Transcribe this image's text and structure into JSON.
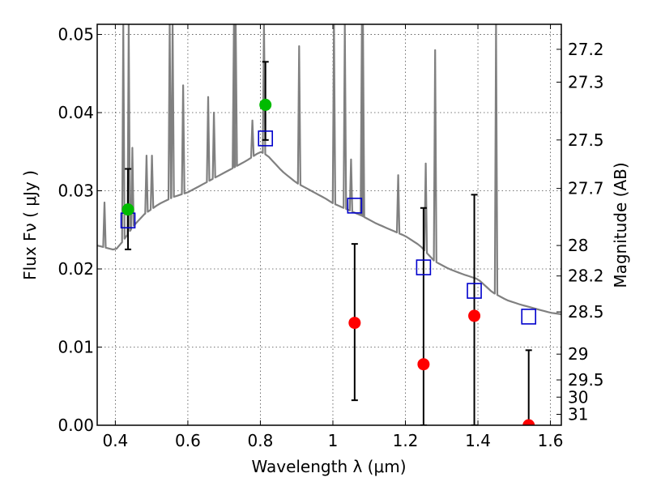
{
  "chart_data": {
    "type": "scatter",
    "xlabel": "Wavelength  λ (μm)",
    "ylabel": "Flux  Fν  ( μJy )",
    "y2label": "Magnitude (AB)",
    "xlim": [
      0.35,
      1.63
    ],
    "ylim": [
      0.0,
      0.0513
    ],
    "x_ticks": [
      0.4,
      0.6,
      0.8,
      1.0,
      1.2,
      1.4,
      1.6
    ],
    "x_tick_labels": [
      "0.4",
      "0.6",
      "0.8",
      "1",
      "1.2",
      "1.4",
      "1.6"
    ],
    "y_ticks": [
      0.0,
      0.01,
      0.02,
      0.03,
      0.04,
      0.05
    ],
    "y_tick_labels": [
      "0.00",
      "0.01",
      "0.02",
      "0.03",
      "0.04",
      "0.05"
    ],
    "mag_ticks": [
      {
        "label": "27.2",
        "flux": 0.0481
      },
      {
        "label": "27.3",
        "flux": 0.0439
      },
      {
        "label": "27.5",
        "flux": 0.0365
      },
      {
        "label": "27.7",
        "flux": 0.0303
      },
      {
        "label": "28",
        "flux": 0.023
      },
      {
        "label": "28.2",
        "flux": 0.0191
      },
      {
        "label": "28.5",
        "flux": 0.0145
      },
      {
        "label": "29",
        "flux": 0.0091
      },
      {
        "label": "29.5",
        "flux": 0.0058
      },
      {
        "label": "30",
        "flux": 0.0036
      },
      {
        "label": "31",
        "flux": 0.0014
      }
    ],
    "grid": true,
    "colors": {
      "model": "#808080",
      "detection": "#00bb00",
      "upper_limit": "#ff0000",
      "synthetic": "#0000cc",
      "errorbar": "#000000"
    },
    "model_continuum": [
      [
        0.35,
        0.023
      ],
      [
        0.4,
        0.0224
      ],
      [
        0.42,
        0.0235
      ],
      [
        0.45,
        0.0255
      ],
      [
        0.48,
        0.027
      ],
      [
        0.52,
        0.0283
      ],
      [
        0.56,
        0.0292
      ],
      [
        0.6,
        0.0298
      ],
      [
        0.64,
        0.0308
      ],
      [
        0.68,
        0.0318
      ],
      [
        0.72,
        0.0328
      ],
      [
        0.76,
        0.0338
      ],
      [
        0.8,
        0.035
      ],
      [
        0.82,
        0.0345
      ],
      [
        0.86,
        0.0325
      ],
      [
        0.9,
        0.031
      ],
      [
        0.94,
        0.03
      ],
      [
        0.98,
        0.029
      ],
      [
        1.0,
        0.0284
      ],
      [
        1.04,
        0.0276
      ],
      [
        1.08,
        0.0268
      ],
      [
        1.12,
        0.0258
      ],
      [
        1.16,
        0.025
      ],
      [
        1.2,
        0.0242
      ],
      [
        1.24,
        0.023
      ],
      [
        1.28,
        0.021
      ],
      [
        1.32,
        0.02
      ],
      [
        1.36,
        0.0193
      ],
      [
        1.4,
        0.0187
      ],
      [
        1.44,
        0.017
      ],
      [
        1.48,
        0.016
      ],
      [
        1.52,
        0.0154
      ],
      [
        1.56,
        0.0149
      ],
      [
        1.6,
        0.0144
      ],
      [
        1.63,
        0.0142
      ]
    ],
    "emission_lines": [
      {
        "x": 0.37,
        "peak": 0.0285
      },
      {
        "x": 0.422,
        "peak": 0.0513
      },
      {
        "x": 0.437,
        "peak": 0.0513
      },
      {
        "x": 0.447,
        "peak": 0.0355
      },
      {
        "x": 0.486,
        "peak": 0.0345
      },
      {
        "x": 0.501,
        "peak": 0.0345
      },
      {
        "x": 0.55,
        "peak": 0.0513
      },
      {
        "x": 0.558,
        "peak": 0.0513
      },
      {
        "x": 0.587,
        "peak": 0.0435
      },
      {
        "x": 0.656,
        "peak": 0.042
      },
      {
        "x": 0.672,
        "peak": 0.04
      },
      {
        "x": 0.727,
        "peak": 0.0513
      },
      {
        "x": 0.732,
        "peak": 0.0513
      },
      {
        "x": 0.778,
        "peak": 0.039
      },
      {
        "x": 0.81,
        "peak": 0.0513
      },
      {
        "x": 0.907,
        "peak": 0.0485
      },
      {
        "x": 1.003,
        "peak": 0.0513
      },
      {
        "x": 1.033,
        "peak": 0.0513
      },
      {
        "x": 1.05,
        "peak": 0.034
      },
      {
        "x": 1.08,
        "peak": 0.0513
      },
      {
        "x": 1.083,
        "peak": 0.0513
      },
      {
        "x": 1.18,
        "peak": 0.032
      },
      {
        "x": 1.256,
        "peak": 0.0335
      },
      {
        "x": 1.282,
        "peak": 0.048
      },
      {
        "x": 1.45,
        "peak": 0.0513
      }
    ],
    "synthetic_photometry": [
      {
        "x": 0.435,
        "y": 0.0262
      },
      {
        "x": 0.814,
        "y": 0.0367
      },
      {
        "x": 1.06,
        "y": 0.0281
      },
      {
        "x": 1.25,
        "y": 0.0202
      },
      {
        "x": 1.39,
        "y": 0.0172
      },
      {
        "x": 1.54,
        "y": 0.0139
      }
    ],
    "detections": [
      {
        "x": 0.435,
        "y": 0.0276,
        "err_low": 0.0225,
        "err_high": 0.0328
      },
      {
        "x": 0.814,
        "y": 0.041,
        "err_low": 0.0365,
        "err_high": 0.0465
      }
    ],
    "upper_limits": [
      {
        "x": 1.06,
        "y": 0.0131,
        "err_low": 0.0032,
        "err_high": 0.0232
      },
      {
        "x": 1.25,
        "y": 0.0078,
        "err_low": 0.0,
        "err_high": 0.0278
      },
      {
        "x": 1.39,
        "y": 0.014,
        "err_low": 0.0,
        "err_high": 0.0295
      },
      {
        "x": 1.54,
        "y": 0.0,
        "err_low": 0.0,
        "err_high": 0.0096
      }
    ]
  }
}
